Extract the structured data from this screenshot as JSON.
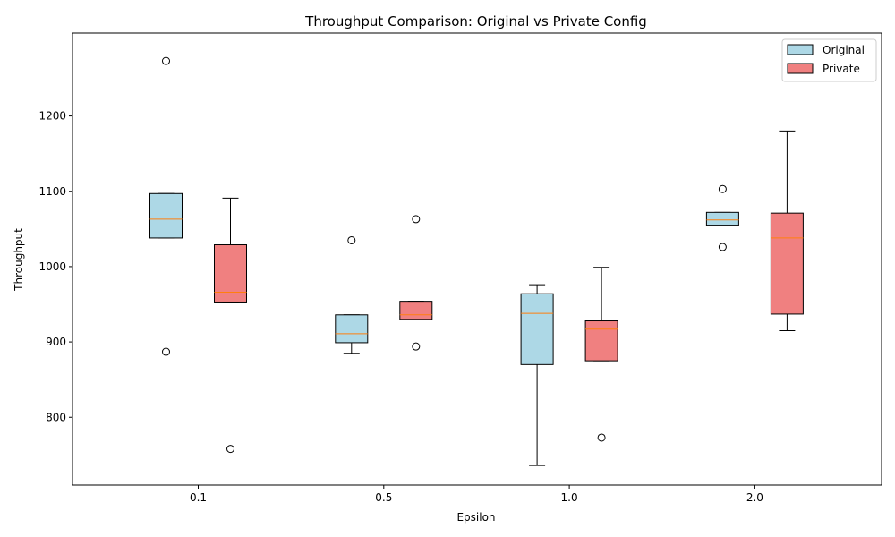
{
  "chart_data": {
    "type": "box",
    "title": "Throughput Comparison: Original vs Private Config",
    "xlabel": "Epsilon",
    "ylabel": "Throughput",
    "categories": [
      "0.1",
      "0.5",
      "1.0",
      "2.0"
    ],
    "ylim": [
      710,
      1310
    ],
    "yticks": [
      800,
      900,
      1000,
      1100,
      1200
    ],
    "grid": false,
    "legend_position": "top-right",
    "series": [
      {
        "name": "Original",
        "color": "#add8e6",
        "boxes": [
          {
            "whisker_low": 1038,
            "q1": 1038,
            "median": 1063,
            "q3": 1097,
            "whisker_high": 1097,
            "outliers": [
              1273,
              887
            ]
          },
          {
            "whisker_low": 885,
            "q1": 899,
            "median": 911,
            "q3": 936,
            "whisker_high": 936,
            "outliers": [
              1035
            ]
          },
          {
            "whisker_low": 736,
            "q1": 870,
            "median": 938,
            "q3": 964,
            "whisker_high": 976,
            "outliers": []
          },
          {
            "whisker_low": 1055,
            "q1": 1055,
            "median": 1062,
            "q3": 1072,
            "whisker_high": 1072,
            "outliers": [
              1103,
              1026
            ]
          }
        ]
      },
      {
        "name": "Private",
        "color": "#f08080",
        "boxes": [
          {
            "whisker_low": 953,
            "q1": 953,
            "median": 966,
            "q3": 1029,
            "whisker_high": 1091,
            "outliers": [
              758
            ]
          },
          {
            "whisker_low": 930,
            "q1": 930,
            "median": 936,
            "q3": 954,
            "whisker_high": 954,
            "outliers": [
              1063,
              894
            ]
          },
          {
            "whisker_low": 875,
            "q1": 875,
            "median": 917,
            "q3": 928,
            "whisker_high": 999,
            "outliers": [
              773
            ]
          },
          {
            "whisker_low": 915,
            "q1": 937,
            "median": 1038,
            "q3": 1071,
            "whisker_high": 1180,
            "outliers": []
          }
        ]
      }
    ],
    "median_color": "#ff7f0e"
  }
}
